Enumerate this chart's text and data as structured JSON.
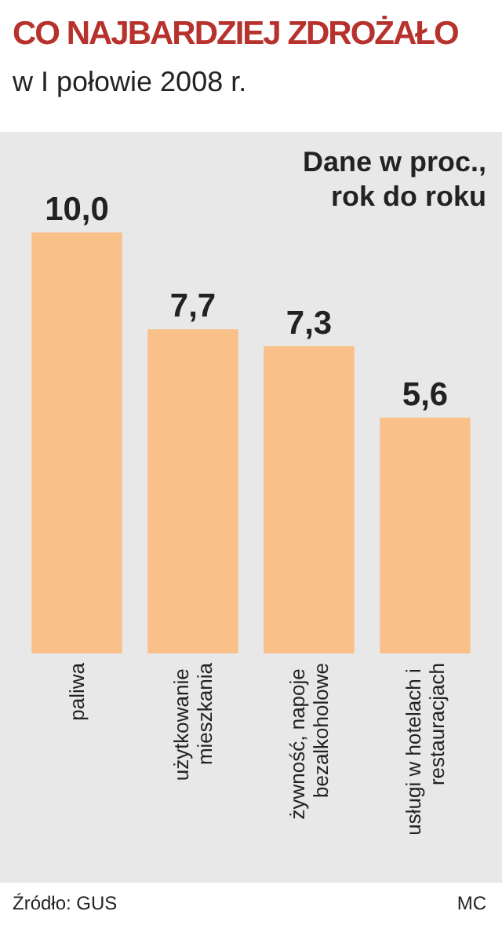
{
  "chart_data": {
    "type": "bar",
    "title": "CO NAJBARDZIEJ ZDROŻAŁO",
    "subtitle": "w I połowie 2008 r.",
    "annotations": [
      "Dane w proc., rok do roku",
      "Źródło: GUS",
      "MC"
    ],
    "categories": [
      "paliwa",
      "użytkowanie mieszkania",
      "żywność, napoje bezalkoholowe",
      "usługi w hotelach i restauracjach"
    ],
    "values": [
      10.0,
      7.7,
      7.3,
      5.6
    ],
    "value_labels": [
      "10,0",
      "7,7",
      "7,3",
      "5,6"
    ],
    "color": "#f9c08a"
  }
}
